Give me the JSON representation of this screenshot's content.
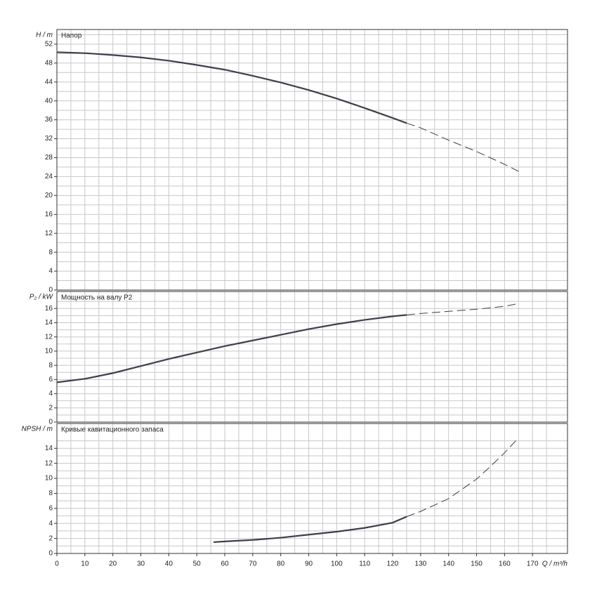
{
  "chart_data": [
    {
      "type": "line",
      "title": "Напор",
      "ylabel": "H / m",
      "color": "#3b404b",
      "xlim": [
        0,
        182.5
      ],
      "xticks": [
        0,
        10,
        20,
        30,
        40,
        50,
        60,
        70,
        80,
        90,
        100,
        110,
        120,
        130,
        140,
        150,
        160,
        170
      ],
      "ylim": [
        0,
        55.1
      ],
      "yticks": [
        0,
        4,
        8,
        12,
        16,
        20,
        24,
        28,
        32,
        36,
        40,
        44,
        48,
        52
      ],
      "grid": true,
      "series": [
        {
          "dashed": false,
          "x": [
            0,
            10,
            20,
            30,
            40,
            50,
            60,
            70,
            80,
            90,
            100,
            110,
            120,
            125
          ],
          "values": [
            50.3,
            50.1,
            49.7,
            49.2,
            48.5,
            47.6,
            46.6,
            45.3,
            43.9,
            42.3,
            40.5,
            38.5,
            36.4,
            35.3
          ]
        },
        {
          "dashed": true,
          "x": [
            125,
            130,
            140,
            150,
            160,
            165
          ],
          "values": [
            35.3,
            34.3,
            31.7,
            29.3,
            26.6,
            25.1
          ]
        }
      ]
    },
    {
      "type": "line",
      "title": "Мощность на валу P2",
      "ylabel": "P₂ / kW",
      "color": "#3b404b",
      "xlim": [
        0,
        182.5
      ],
      "xticks": [
        0,
        10,
        20,
        30,
        40,
        50,
        60,
        70,
        80,
        90,
        100,
        110,
        120,
        130,
        140,
        150,
        160,
        170
      ],
      "ylim": [
        0,
        18.4
      ],
      "yticks": [
        0,
        2,
        4,
        6,
        8,
        10,
        12,
        14,
        16
      ],
      "grid": true,
      "series": [
        {
          "dashed": false,
          "x": [
            0,
            10,
            20,
            30,
            40,
            50,
            60,
            70,
            80,
            90,
            100,
            110,
            120,
            125
          ],
          "values": [
            5.6,
            6.1,
            6.9,
            7.9,
            8.9,
            9.8,
            10.7,
            11.5,
            12.3,
            13.1,
            13.8,
            14.4,
            14.9,
            15.1
          ]
        },
        {
          "dashed": true,
          "x": [
            125,
            130,
            140,
            150,
            160,
            165
          ],
          "values": [
            15.1,
            15.3,
            15.6,
            15.9,
            16.3,
            16.7
          ]
        }
      ]
    },
    {
      "type": "line",
      "title": "Кривые кавитационного запаса",
      "ylabel": "NPSH / m",
      "xlabel": "Q / m³/h",
      "color": "#3b404b",
      "xlim": [
        0,
        182.5
      ],
      "xticks": [
        0,
        10,
        20,
        30,
        40,
        50,
        60,
        70,
        80,
        90,
        100,
        110,
        120,
        130,
        140,
        150,
        160,
        170
      ],
      "ylim": [
        0,
        17.3
      ],
      "yticks": [
        0,
        2,
        4,
        6,
        8,
        10,
        12,
        14
      ],
      "grid": true,
      "series": [
        {
          "dashed": false,
          "x": [
            56,
            60,
            70,
            80,
            90,
            100,
            110,
            120,
            125
          ],
          "values": [
            1.5,
            1.6,
            1.8,
            2.1,
            2.5,
            2.9,
            3.4,
            4.1,
            4.9
          ]
        },
        {
          "dashed": true,
          "x": [
            125,
            130,
            140,
            150,
            155,
            160,
            165
          ],
          "values": [
            4.9,
            5.6,
            7.3,
            9.9,
            11.6,
            13.4,
            15.4
          ]
        }
      ]
    }
  ]
}
